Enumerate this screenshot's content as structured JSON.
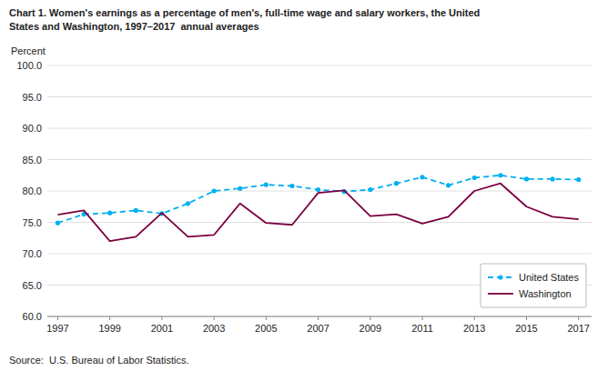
{
  "chart_data": {
    "type": "line",
    "title": "Chart 1. Women's earnings as a percentage of men's, full-time wage and salary workers, the United\nStates and Washington, 1997–2017  annual averages",
    "y_label": "Percent",
    "source": "Source:  U.S. Bureau of Labor Statistics.",
    "x": [
      1997,
      1998,
      1999,
      2000,
      2001,
      2002,
      2003,
      2004,
      2005,
      2006,
      2007,
      2008,
      2009,
      2010,
      2011,
      2012,
      2013,
      2014,
      2015,
      2016,
      2017
    ],
    "series": [
      {
        "name": "United States",
        "color": "#00B0F0",
        "line_style": "dashed",
        "marker": "circle",
        "values": [
          74.9,
          76.3,
          76.5,
          76.9,
          76.4,
          78.0,
          80.0,
          80.4,
          81.0,
          80.8,
          80.2,
          79.9,
          80.2,
          81.2,
          82.2,
          80.9,
          82.1,
          82.5,
          81.9,
          81.9,
          81.8
        ]
      },
      {
        "name": "Washington",
        "color": "#7B0041",
        "line_style": "solid",
        "marker": "none",
        "values": [
          76.2,
          76.9,
          72.0,
          72.7,
          76.5,
          72.7,
          73.0,
          78.0,
          74.9,
          74.6,
          79.7,
          80.1,
          76.0,
          76.3,
          74.8,
          75.9,
          80.0,
          81.2,
          77.5,
          75.9,
          75.5
        ]
      }
    ],
    "xlim": [
      1996.6,
      2017.5
    ],
    "xticks": [
      1997,
      1999,
      2001,
      2003,
      2005,
      2007,
      2009,
      2011,
      2013,
      2015,
      2017
    ],
    "ylim": [
      60.0,
      100.0
    ],
    "yticks": [
      {
        "value": 60.0,
        "label": "60.0"
      },
      {
        "value": 65.0,
        "label": "65.0"
      },
      {
        "value": 70.0,
        "label": "70.0"
      },
      {
        "value": 75.0,
        "label": "75.0"
      },
      {
        "value": 80.0,
        "label": "80.0"
      },
      {
        "value": 85.0,
        "label": "85.0"
      },
      {
        "value": 90.0,
        "label": "90.0"
      },
      {
        "value": 95.0,
        "label": "95.0"
      },
      {
        "value": 100.0,
        "label": "100.0"
      }
    ],
    "grid": true,
    "legend": "lower right"
  }
}
